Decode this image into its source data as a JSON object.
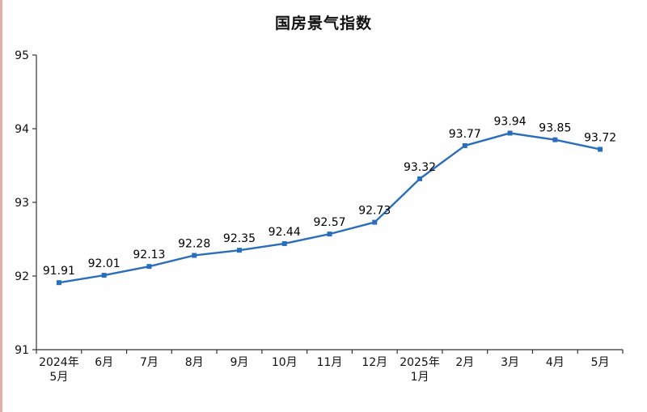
{
  "page": {
    "background_color": "#fefefe",
    "edge_stripe_color": "#eaabab"
  },
  "chart_data": {
    "type": "line",
    "title": "国房景气指数",
    "categories": [
      "2024年\n5月",
      "6月",
      "7月",
      "8月",
      "9月",
      "10月",
      "11月",
      "12月",
      "2025年\n1月",
      "2月",
      "3月",
      "4月",
      "5月"
    ],
    "values": [
      91.91,
      92.01,
      92.13,
      92.28,
      92.35,
      92.44,
      92.57,
      92.73,
      93.32,
      93.77,
      93.94,
      93.85,
      93.72
    ],
    "ylim": [
      91,
      95
    ],
    "y_ticks": [
      91,
      92,
      93,
      94,
      95
    ],
    "xlabel": "",
    "ylabel": "",
    "grid": false,
    "legend_position": "none",
    "data_labels": true,
    "line_color": "#2a6ebb",
    "marker": "square",
    "marker_color": "#2a6ebb",
    "label_color": "#000000",
    "axis_color": "#333333",
    "tick_label_color": "#111111"
  }
}
